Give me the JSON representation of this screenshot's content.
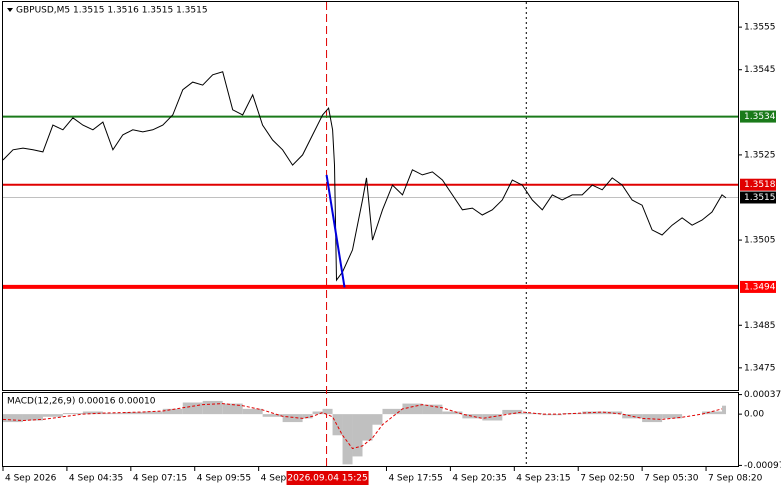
{
  "chart_data": [
    {
      "type": "line",
      "title": "GBPUSD,M5  1.3515 1.3516 1.3515 1.3515",
      "x": [
        0,
        5,
        10,
        15,
        20,
        25,
        30,
        35,
        40,
        45,
        50,
        55,
        60,
        65,
        70,
        75,
        80,
        85,
        90,
        95,
        100,
        105,
        110,
        115,
        120,
        125,
        130,
        135,
        140,
        145,
        150,
        155,
        160,
        163,
        165,
        166,
        167,
        170,
        175,
        180,
        182,
        185,
        190,
        195,
        200,
        205,
        210,
        215,
        220,
        225,
        230,
        235,
        240,
        245,
        250,
        255,
        260,
        265,
        270,
        275,
        280,
        285,
        290,
        295,
        300,
        305,
        310,
        315,
        320,
        325,
        330,
        335,
        340,
        345,
        350,
        355,
        360,
        362
      ],
      "series": [
        {
          "color": "#000000",
          "values": [
            1.35238,
            1.35262,
            1.35266,
            1.35262,
            1.35257,
            1.3532,
            1.35309,
            1.35337,
            1.3532,
            1.35309,
            1.35327,
            1.35262,
            1.35297,
            1.35309,
            1.35304,
            1.35309,
            1.3532,
            1.35344,
            1.35403,
            1.35421,
            1.35414,
            1.35438,
            1.35445,
            1.35356,
            1.35344,
            1.35391,
            1.3532,
            1.35285,
            1.35262,
            1.35226,
            1.3525,
            1.35297,
            1.35344,
            1.3536,
            1.35309,
            1.35226,
            1.34956,
            1.34975,
            1.35027,
            1.35144,
            1.35196,
            1.3505,
            1.35121,
            1.35179,
            1.35156,
            1.35215,
            1.35203,
            1.3521,
            1.35191,
            1.35156,
            1.35121,
            1.35125,
            1.35109,
            1.35121,
            1.35144,
            1.35191,
            1.35179,
            1.35144,
            1.35121,
            1.35156,
            1.35144,
            1.35156,
            1.35156,
            1.35179,
            1.35168,
            1.35196,
            1.35179,
            1.35144,
            1.35132,
            1.35074,
            1.35062,
            1.35085,
            1.35102,
            1.35085,
            1.35097,
            1.35116,
            1.35156,
            1.35149
          ]
        }
      ],
      "xlim": [
        0,
        368
      ],
      "ylim": [
        1.34698,
        1.35609
      ],
      "yticks": [
        1.3475,
        1.3485,
        1.3505,
        1.3525,
        1.3545,
        1.3555
      ],
      "xticks": [
        {
          "value": 0,
          "label": "4 Sep 2026"
        },
        {
          "value": 32,
          "label": "4 Sep 04:35"
        },
        {
          "value": 64,
          "label": "4 Sep 07:15"
        },
        {
          "value": 96,
          "label": "4 Sep 09:55"
        },
        {
          "value": 128,
          "label": "4 Sep"
        },
        {
          "value": 192,
          "label": "4 Sep 17:55"
        },
        {
          "value": 224,
          "label": "4 Sep 20:35"
        },
        {
          "value": 256,
          "label": "4 Sep 23:15"
        },
        {
          "value": 288,
          "label": "7 Sep 02:50"
        },
        {
          "value": 320,
          "label": "7 Sep 05:30"
        },
        {
          "value": 352,
          "label": "7 Sep 08:20"
        }
      ],
      "crosshair": {
        "value": 162,
        "label": "2026.09.04 15:25",
        "color": "#e00000"
      },
      "vlines": [
        262
      ],
      "levels": [
        {
          "value": 1.3534,
          "color": "#1a7a1a"
        },
        {
          "value": 1.3518,
          "color": "#e00000"
        },
        {
          "value": 1.3494,
          "color": "#ff0000",
          "line_width": 4
        }
      ],
      "current": {
        "value": 1.3515,
        "color": "#c0c0c0"
      },
      "trendline": {
        "x": [
          162,
          171
        ],
        "values": [
          1.35203,
          1.34939
        ],
        "color": "#0000dd"
      }
    },
    {
      "type": "macd",
      "title": "MACD(12,26,9) 0.00016 0.00010",
      "x": [
        0,
        10,
        20,
        30,
        40,
        50,
        60,
        70,
        80,
        90,
        100,
        110,
        120,
        130,
        140,
        150,
        155,
        160,
        165,
        170,
        175,
        180,
        185,
        190,
        200,
        210,
        220,
        230,
        240,
        250,
        260,
        270,
        280,
        290,
        300,
        310,
        320,
        330,
        340,
        350,
        360
      ],
      "series": [
        {
          "color": "#c0c0c0",
          "values": [
            -0.00015,
            -0.00012,
            -5e-05,
            2e-05,
            5e-05,
            2e-05,
            4e-05,
            5e-05,
            0.0001,
            0.00022,
            0.00025,
            0.0002,
            0.0001,
            -5e-05,
            -0.00015,
            -8e-05,
            5e-05,
            0.0001,
            -0.0004,
            -0.00095,
            -0.0008,
            -0.0005,
            -0.0002,
            0.0001,
            0.0002,
            0.00018,
            5e-05,
            -8e-05,
            -0.00012,
            8e-05,
            2e-05,
            -2e-05,
            2e-05,
            5e-05,
            5e-05,
            -8e-05,
            -0.00015,
            -8e-05,
            0,
            5e-05,
            0.00016
          ]
        },
        {
          "color": "#e00000",
          "values": [
            -0.0001,
            -0.00012,
            -0.0001,
            -5e-05,
            0,
            2e-05,
            3e-05,
            4e-05,
            6e-05,
            0.00012,
            0.00018,
            0.0002,
            0.00016,
            8e-05,
            -4e-05,
            -8e-05,
            -4e-05,
            3e-05,
            -5e-05,
            -0.0004,
            -0.00065,
            -0.0006,
            -0.00045,
            -0.0002,
            0.0001,
            0.00018,
            0.00012,
            0,
            -8e-05,
            -2e-05,
            4e-05,
            0,
            0,
            2e-05,
            4e-05,
            0,
            -8e-05,
            -0.0001,
            -6e-05,
            0,
            0.0001
          ]
        }
      ],
      "xlim": [
        0,
        368
      ],
      "ylim": [
        -0.001,
        0.0004
      ],
      "yticks": [
        0.00037,
        {
          "value": 0,
          "label": "0.00"
        },
        -0.00097
      ]
    }
  ]
}
